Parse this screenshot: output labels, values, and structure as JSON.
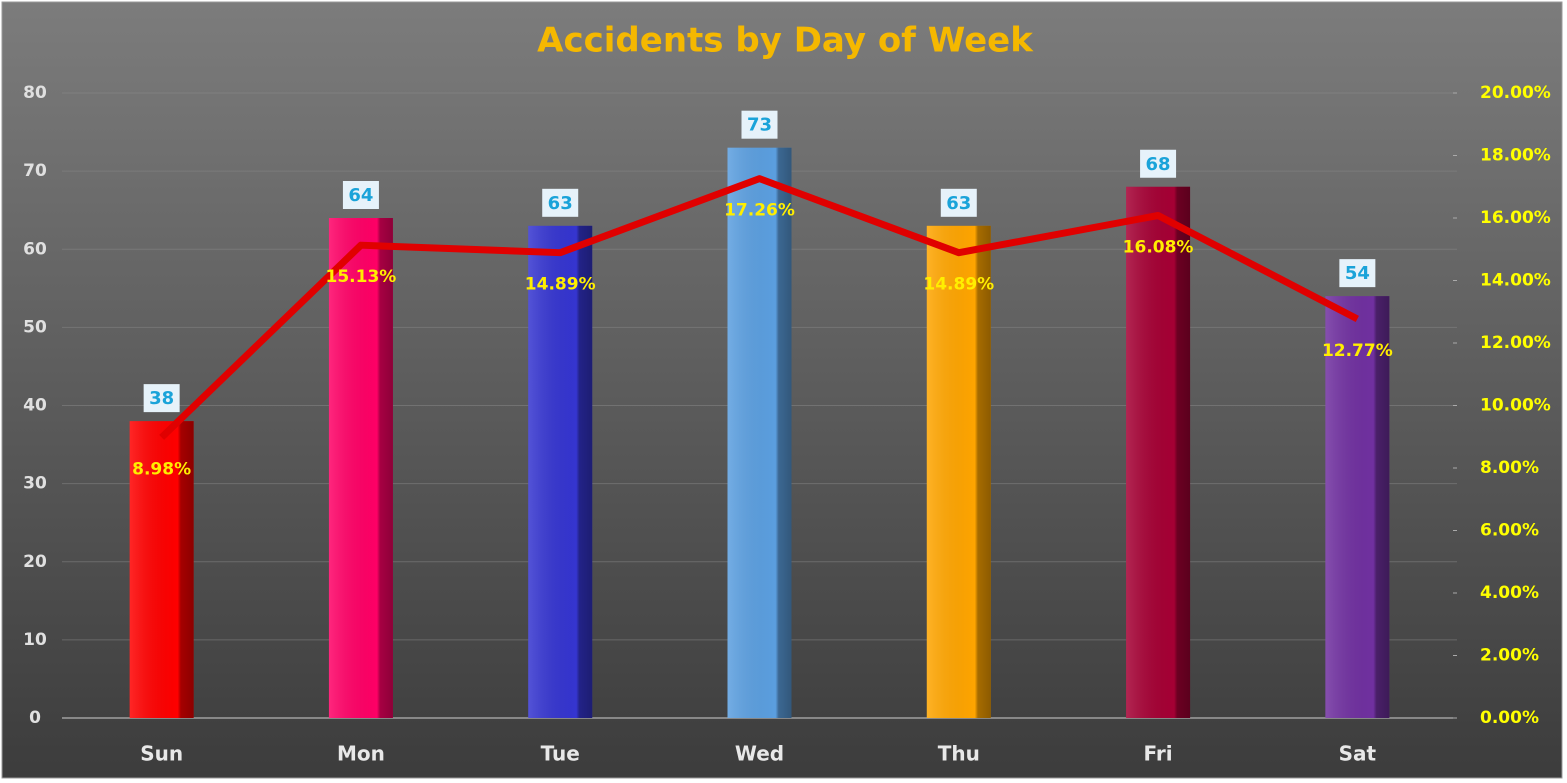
{
  "chart_data": {
    "type": "bar",
    "title": "Accidents by Day of Week",
    "categories": [
      "Sun",
      "Mon",
      "Tue",
      "Wed",
      "Thu",
      "Fri",
      "Sat"
    ],
    "series": [
      {
        "type": "bar",
        "colors": [
          "#ff0000",
          "#ff0066",
          "#3535d0",
          "#5b9fe0",
          "#ffa500",
          "#a50034",
          "#7030a0"
        ],
        "values": [
          38,
          64,
          63,
          73,
          63,
          68,
          54
        ]
      },
      {
        "type": "line",
        "axis": "y2",
        "color": "#e00000",
        "values": [
          8.98,
          15.13,
          14.89,
          17.26,
          14.89,
          16.08,
          12.77
        ],
        "value_labels": [
          "8.98%",
          "15.13%",
          "14.89%",
          "17.26%",
          "14.89%",
          "16.08%",
          "12.77%"
        ]
      }
    ],
    "ylim": [
      0,
      80
    ],
    "yticks": [
      0,
      10,
      20,
      30,
      40,
      50,
      60,
      70,
      80
    ],
    "y2lim": [
      0,
      20
    ],
    "y2ticks": [
      {
        "value": 0,
        "label": "0.00%"
      },
      {
        "value": 2,
        "label": "2.00%"
      },
      {
        "value": 4,
        "label": "4.00%"
      },
      {
        "value": 6,
        "label": "6.00%"
      },
      {
        "value": 8,
        "label": "8.00%"
      },
      {
        "value": 10,
        "label": "10.00%"
      },
      {
        "value": 12,
        "label": "12.00%"
      },
      {
        "value": 14,
        "label": "14.00%"
      },
      {
        "value": 16,
        "label": "16.00%"
      },
      {
        "value": 18,
        "label": "18.00%"
      },
      {
        "value": 20,
        "label": "20.00%"
      }
    ],
    "grid": true
  }
}
